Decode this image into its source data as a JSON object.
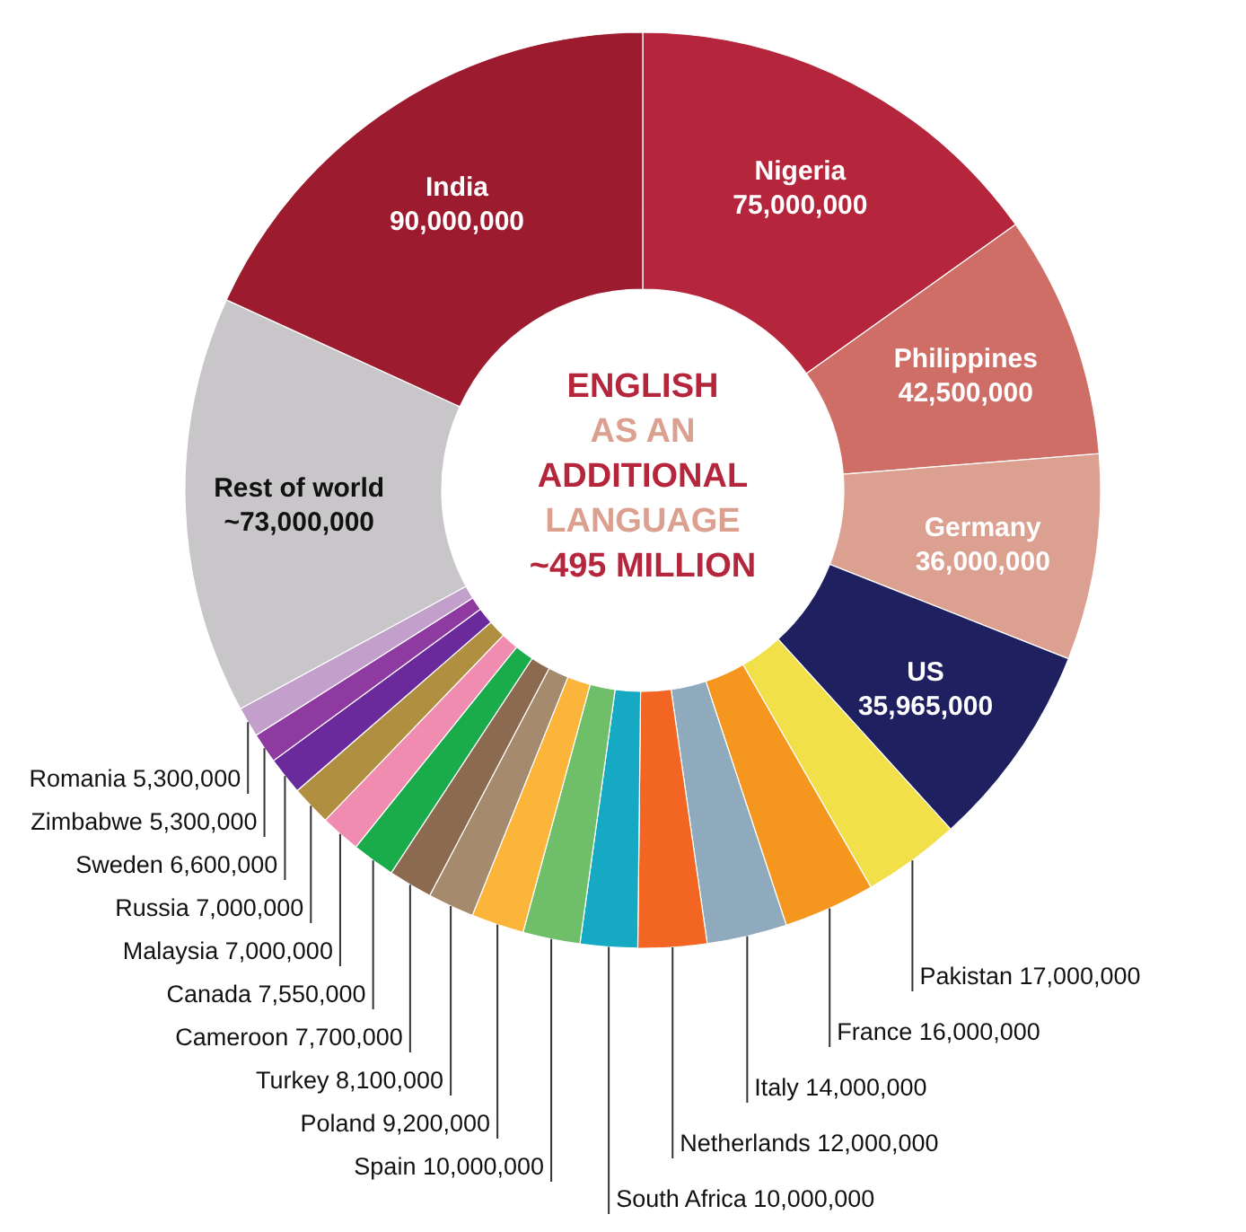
{
  "chart_data": {
    "type": "donut",
    "title": "ENGLISH AS AN ADDITIONAL LANGUAGE",
    "subtitle": "~495 MILLION",
    "categories": [
      "Nigeria",
      "Philippines",
      "Germany",
      "US",
      "Pakistan",
      "France",
      "Italy",
      "Netherlands",
      "South Africa",
      "Spain",
      "Poland",
      "Turkey",
      "Cameroon",
      "Canada",
      "Malaysia",
      "Russia",
      "Sweden",
      "Zimbabwe",
      "Romania",
      "Rest of world",
      "India"
    ],
    "values": [
      75000000,
      42500000,
      36000000,
      35965000,
      17000000,
      16000000,
      14000000,
      12000000,
      10000000,
      10000000,
      9200000,
      8100000,
      7700000,
      7550000,
      7000000,
      7000000,
      6600000,
      5300000,
      5300000,
      73000000,
      90000000
    ],
    "value_labels": [
      "75,000,000",
      "42,500,000",
      "36,000,000",
      "35,965,000",
      "17,000,000",
      "16,000,000",
      "14,000,000",
      "12,000,000",
      "10,000,000",
      "10,000,000",
      "9,200,000",
      "8,100,000",
      "7,700,000",
      "7,550,000",
      "7,000,000",
      "7,000,000",
      "6,600,000",
      "5,300,000",
      "5,300,000",
      "~73,000,000",
      "90,000,000"
    ],
    "colors": [
      "#b5253c",
      "#cf6e66",
      "#dba08f",
      "#1f2060",
      "#f2e04a",
      "#f5961e",
      "#8fa9bd",
      "#f26522",
      "#16a9c4",
      "#6fbf6a",
      "#fbb53b",
      "#a58a6e",
      "#8c6a50",
      "#1aab4b",
      "#f08cb0",
      "#b09040",
      "#6a2a9c",
      "#8e3aa0",
      "#c3a0cc",
      "#c8c6c8",
      "#9c1b2e"
    ],
    "legend": false
  }
}
